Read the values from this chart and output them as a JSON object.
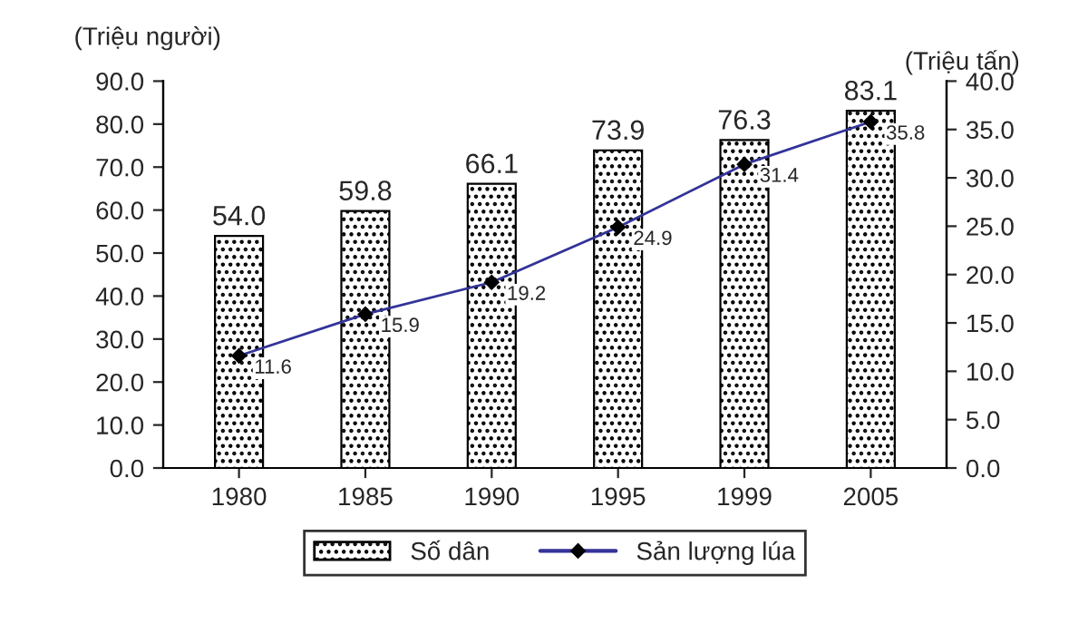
{
  "chart_data": {
    "type": "bar",
    "categories": [
      "1980",
      "1985",
      "1990",
      "1995",
      "1999",
      "2005"
    ],
    "ylabel": "(Triệu người)",
    "y2label": "(Triệu tấn)",
    "series": [
      {
        "name": "Số dân",
        "color": "#000000",
        "values": [
          54.0,
          59.8,
          66.1,
          73.9,
          76.3,
          83.1
        ],
        "value_labels": [
          "54.0",
          "59.8",
          "66.1",
          "73.9",
          "76.3",
          "83.1"
        ]
      },
      {
        "name": "Sản lượng lúa",
        "type": "line",
        "axis": "y2",
        "color": "#333399",
        "marker": "diamond",
        "values": [
          11.6,
          15.9,
          19.2,
          24.9,
          31.4,
          35.8
        ],
        "value_labels": [
          "11.6",
          "15.9",
          "19.2",
          "24.9",
          "31.4",
          "35.8"
        ]
      }
    ],
    "ylim": [
      0,
      90
    ],
    "yticks": [
      {
        "value": 0,
        "label": "0.0"
      },
      {
        "value": 10,
        "label": "10.0"
      },
      {
        "value": 20,
        "label": "20.0"
      },
      {
        "value": 30,
        "label": "30.0"
      },
      {
        "value": 40,
        "label": "40.0"
      },
      {
        "value": 50,
        "label": "50.0"
      },
      {
        "value": 60,
        "label": "60.0"
      },
      {
        "value": 70,
        "label": "70.0"
      },
      {
        "value": 80,
        "label": "80.0"
      },
      {
        "value": 90,
        "label": "90.0"
      }
    ],
    "y2lim": [
      0,
      40
    ],
    "y2ticks": [
      {
        "value": 0,
        "label": "0.0"
      },
      {
        "value": 5,
        "label": "5.0"
      },
      {
        "value": 10,
        "label": "10.0"
      },
      {
        "value": 15,
        "label": "15.0"
      },
      {
        "value": 20,
        "label": "20.0"
      },
      {
        "value": 25,
        "label": "25.0"
      },
      {
        "value": 30,
        "label": "30.0"
      },
      {
        "value": 35,
        "label": "35.0"
      },
      {
        "value": 40,
        "label": "40.0"
      }
    ],
    "legend": "bottom",
    "grid": false
  }
}
